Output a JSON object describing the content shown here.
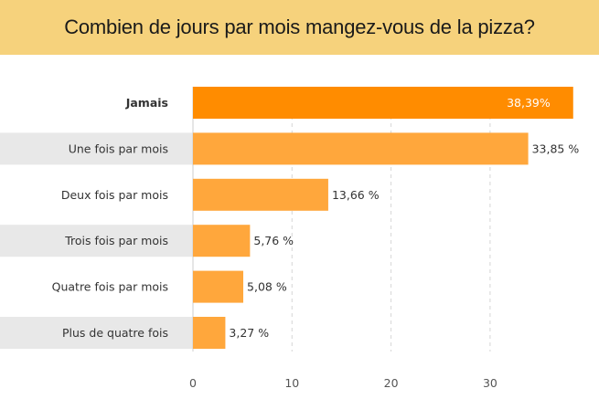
{
  "chart_data": {
    "type": "bar",
    "orientation": "horizontal",
    "title": "Combien de jours par mois mangez-vous de la pizza?",
    "categories": [
      "Jamais",
      "Une fois par mois",
      "Deux fois par mois",
      "Trois fois par mois",
      "Quatre fois par mois",
      "Plus de quatre fois"
    ],
    "values": [
      38.39,
      33.85,
      13.66,
      5.76,
      5.08,
      3.27
    ],
    "value_labels": [
      "38,39%",
      "33,85 %",
      "13,66 %",
      "5,76 %",
      "5,08 %",
      "3,27 %"
    ],
    "highlighted_index": 0,
    "xlabel": "",
    "ylabel": "",
    "xlim": [
      0,
      40
    ],
    "x_ticks": [
      0,
      10,
      20,
      30
    ],
    "x_tick_labels": [
      "0",
      "10",
      "20",
      "30"
    ],
    "grid": "vertical dashed",
    "colors": {
      "highlight": "#FF8C00",
      "bar": "#FFA73C",
      "band": "#E8E8E8",
      "title_band": "#F6D27C"
    }
  }
}
